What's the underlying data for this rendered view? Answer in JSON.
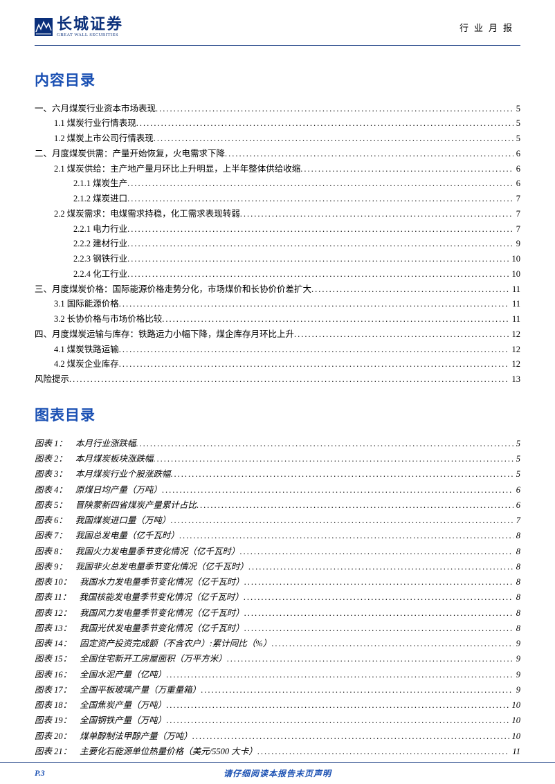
{
  "header": {
    "logo_cn": "长城证券",
    "logo_en": "GREAT WALL SECURITIES",
    "right": "行业月报"
  },
  "toc_title": "内容目录",
  "toc": [
    {
      "level": 0,
      "label": "一、六月煤炭行业资本市场表现",
      "page": "5"
    },
    {
      "level": 1,
      "label": "1.1 煤炭行业行情表现",
      "page": "5"
    },
    {
      "level": 1,
      "label": "1.2 煤炭上市公司行情表现",
      "page": "5"
    },
    {
      "level": 0,
      "label": "二、月度煤炭供需：产量开始恢复，火电需求下降",
      "page": "6"
    },
    {
      "level": 1,
      "label": "2.1 煤炭供给：主产地产量月环比上升明显，上半年整体供给收缩",
      "page": "6"
    },
    {
      "level": 2,
      "label": "2.1.1 煤炭生产",
      "page": "6"
    },
    {
      "level": 2,
      "label": "2.1.2 煤炭进口",
      "page": "7"
    },
    {
      "level": 1,
      "label": "2.2 煤炭需求：电煤需求持稳，化工需求表现转弱",
      "page": "7"
    },
    {
      "level": 2,
      "label": "2.2.1 电力行业",
      "page": "7"
    },
    {
      "level": 2,
      "label": "2.2.2 建材行业",
      "page": "9"
    },
    {
      "level": 2,
      "label": "2.2.3 钢铁行业",
      "page": "10"
    },
    {
      "level": 2,
      "label": "2.2.4 化工行业",
      "page": "10"
    },
    {
      "level": 0,
      "label": "三、月度煤炭价格：国际能源价格走势分化，市场煤价和长协价价差扩大",
      "page": "11"
    },
    {
      "level": 1,
      "label": "3.1 国际能源价格",
      "page": "11"
    },
    {
      "level": 1,
      "label": "3.2 长协价格与市场价格比较",
      "page": "11"
    },
    {
      "level": 0,
      "label": "四、月度煤炭运输与库存：铁路运力小幅下降，煤企库存月环比上升",
      "page": "12"
    },
    {
      "level": 1,
      "label": "4.1 煤炭铁路运输",
      "page": "12"
    },
    {
      "level": 1,
      "label": "4.2 煤炭企业库存",
      "page": "12"
    },
    {
      "level": 0,
      "label": "风险提示",
      "page": "13"
    }
  ],
  "figures_title": "图表目录",
  "figures": [
    {
      "num": "图表 1：",
      "label": "本月行业涨跌幅",
      "page": "5"
    },
    {
      "num": "图表 2：",
      "label": "本月煤炭板块涨跌幅",
      "page": "5"
    },
    {
      "num": "图表 3：",
      "label": "本月煤炭行业个股涨跌幅",
      "page": "5"
    },
    {
      "num": "图表 4：",
      "label": "原煤日均产量（万吨）",
      "page": "6"
    },
    {
      "num": "图表 5：",
      "label": "晋陕蒙新四省煤炭产量累计占比",
      "page": "6"
    },
    {
      "num": "图表 6：",
      "label": "我国煤炭进口量（万吨）",
      "page": "7"
    },
    {
      "num": "图表 7：",
      "label": "我国总发电量（亿千瓦时）",
      "page": "8"
    },
    {
      "num": "图表 8：",
      "label": "我国火力发电量季节变化情况（亿千瓦时）",
      "page": "8"
    },
    {
      "num": "图表 9：",
      "label": "我国非火总发电量季节变化情况（亿千瓦时）",
      "page": "8"
    },
    {
      "num": "图表 10：",
      "label": "我国水力发电量季节变化情况（亿千瓦时）",
      "page": "8"
    },
    {
      "num": "图表 11：",
      "label": "我国核能发电量季节变化情况（亿千瓦时）",
      "page": "8"
    },
    {
      "num": "图表 12：",
      "label": "我国风力发电量季节变化情况（亿千瓦时）",
      "page": "8"
    },
    {
      "num": "图表 13：",
      "label": "我国光伏发电量季节变化情况（亿千瓦时）",
      "page": "8"
    },
    {
      "num": "图表 14：",
      "label": "固定资产投资完成额（不含农户）:累计同比（%）",
      "page": "9"
    },
    {
      "num": "图表 15：",
      "label": "全国住宅新开工房屋面积（万平方米）",
      "page": "9"
    },
    {
      "num": "图表 16：",
      "label": "全国水泥产量（亿吨）",
      "page": "9"
    },
    {
      "num": "图表 17：",
      "label": "全国平板玻璃产量（万重量箱）",
      "page": "9"
    },
    {
      "num": "图表 18：",
      "label": "全国焦炭产量（万吨）",
      "page": "10"
    },
    {
      "num": "图表 19：",
      "label": "全国钢铁产量（万吨）",
      "page": "10"
    },
    {
      "num": "图表 20：",
      "label": "煤单醇制法甲醇产量（万吨）",
      "page": "10"
    },
    {
      "num": "图表 21：",
      "label": "主要化石能源单位热量价格（美元/5500 大卡）",
      "page": "11"
    }
  ],
  "footer": {
    "left": "P.3",
    "center": "请仔细阅读本报告末页声明"
  },
  "colors": {
    "brand": "#0a2f7a",
    "title_blue": "#1a50b3",
    "background": "#ffffff",
    "text": "#000000"
  }
}
